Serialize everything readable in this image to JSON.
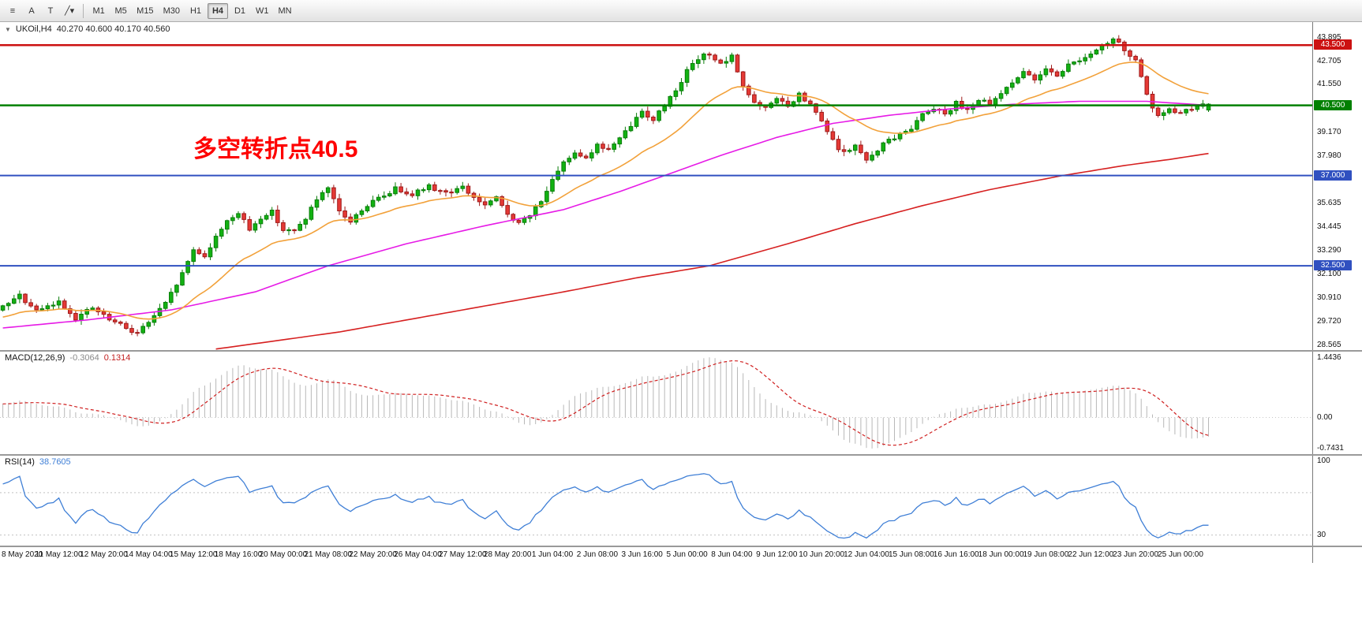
{
  "toolbar": {
    "icons": [
      {
        "name": "chart-list-icon",
        "glyph": "≡"
      },
      {
        "name": "tool-a-button",
        "glyph": "A"
      },
      {
        "name": "tool-t-button",
        "glyph": "T"
      },
      {
        "name": "draw-tool-dropdown",
        "glyph": "╱▾"
      }
    ],
    "timeframes": [
      "M1",
      "M5",
      "M15",
      "M30",
      "H1",
      "H4",
      "D1",
      "W1",
      "MN"
    ],
    "active_timeframe": "H4"
  },
  "header": {
    "dropdown_glyph": "▼",
    "symbol": "UKOil,H4",
    "ohlc": "40.270 40.600 40.170 40.560"
  },
  "annotation": {
    "text": "多空转折点40.5",
    "color": "#fe0000"
  },
  "chart_data": {
    "type": "candlestick",
    "symbol": "UKOil",
    "timeframe": "H4",
    "num_candles": 216,
    "slots": 234,
    "seed": 9,
    "prehistory_candles": 70,
    "price_range": [
      28.3,
      44.65
    ],
    "price_ticks": [
      {
        "v": 43.895,
        "t": "43.895"
      },
      {
        "v": 42.705,
        "t": "42.705"
      },
      {
        "v": 41.55,
        "t": "41.550"
      },
      {
        "v": 39.17,
        "t": "39.170"
      },
      {
        "v": 37.98,
        "t": "37.980"
      },
      {
        "v": 35.635,
        "t": "35.635"
      },
      {
        "v": 34.445,
        "t": "34.445"
      },
      {
        "v": 33.29,
        "t": "33.290"
      },
      {
        "v": 32.1,
        "t": "32.100"
      },
      {
        "v": 30.91,
        "t": "30.910"
      },
      {
        "v": 29.72,
        "t": "29.720"
      },
      {
        "v": 28.565,
        "t": "28.565"
      }
    ],
    "hlines": [
      {
        "value": 43.5,
        "label": "43.500",
        "color": "#cc1111",
        "width": 2.5
      },
      {
        "value": 40.5,
        "label": "40.500",
        "color": "#008000",
        "width": 2.5
      },
      {
        "value": 37.0,
        "label": "37.000",
        "color": "#3050c0",
        "width": 2
      },
      {
        "value": 32.5,
        "label": "32.500",
        "color": "#3050c0",
        "width": 2
      }
    ],
    "x_labels": [
      "8 May 2020",
      "11 May 12:00",
      "12 May 20:00",
      "14 May 04:00",
      "15 May 12:00",
      "18 May 16:00",
      "20 May 00:00",
      "21 May 08:00",
      "22 May 20:00",
      "26 May 04:00",
      "27 May 12:00",
      "28 May 20:00",
      "1 Jun 04:00",
      "2 Jun 08:00",
      "3 Jun 16:00",
      "5 Jun 00:00",
      "8 Jun 04:00",
      "9 Jun 12:00",
      "10 Jun 20:00",
      "12 Jun 04:00",
      "15 Jun 08:00",
      "16 Jun 16:00",
      "18 Jun 00:00",
      "19 Jun 08:00",
      "22 Jun 12:00",
      "23 Jun 20:00",
      "25 Jun 00:00"
    ],
    "candles_per_label": 8,
    "first_label_candle": 2,
    "prehistory_anchors": [
      [
        -70,
        27.2
      ],
      [
        -55,
        27.9
      ],
      [
        -40,
        28.6
      ],
      [
        -25,
        29.2
      ],
      [
        -12,
        29.8
      ]
    ],
    "close_anchors": [
      [
        0,
        30.4
      ],
      [
        3,
        31.0
      ],
      [
        6,
        30.2
      ],
      [
        10,
        30.7
      ],
      [
        13,
        29.9
      ],
      [
        16,
        30.4
      ],
      [
        19,
        29.8
      ],
      [
        22,
        29.4
      ],
      [
        24,
        29.15
      ],
      [
        26,
        29.7
      ],
      [
        29,
        30.6
      ],
      [
        32,
        32.1
      ],
      [
        34,
        33.3
      ],
      [
        36,
        33.0
      ],
      [
        38,
        33.9
      ],
      [
        40,
        34.8
      ],
      [
        42,
        35.1
      ],
      [
        44,
        34.3
      ],
      [
        46,
        34.9
      ],
      [
        48,
        35.2
      ],
      [
        50,
        34.3
      ],
      [
        52,
        34.2
      ],
      [
        54,
        34.9
      ],
      [
        56,
        35.8
      ],
      [
        58,
        36.3
      ],
      [
        60,
        35.2
      ],
      [
        62,
        34.7
      ],
      [
        64,
        35.3
      ],
      [
        66,
        35.7
      ],
      [
        68,
        36.0
      ],
      [
        70,
        36.35
      ],
      [
        73,
        36.1
      ],
      [
        76,
        36.45
      ],
      [
        79,
        36.15
      ],
      [
        82,
        36.4
      ],
      [
        84,
        35.9
      ],
      [
        86,
        35.5
      ],
      [
        88,
        35.85
      ],
      [
        90,
        35.1
      ],
      [
        92,
        34.6
      ],
      [
        94,
        35.0
      ],
      [
        96,
        35.8
      ],
      [
        98,
        36.7
      ],
      [
        100,
        37.6
      ],
      [
        102,
        38.2
      ],
      [
        104,
        37.9
      ],
      [
        106,
        38.5
      ],
      [
        108,
        38.3
      ],
      [
        110,
        38.8
      ],
      [
        112,
        39.5
      ],
      [
        114,
        40.2
      ],
      [
        116,
        39.8
      ],
      [
        118,
        40.5
      ],
      [
        120,
        41.3
      ],
      [
        122,
        42.2
      ],
      [
        124,
        42.8
      ],
      [
        126,
        43.1
      ],
      [
        128,
        42.5
      ],
      [
        130,
        42.9
      ],
      [
        132,
        41.5
      ],
      [
        134,
        40.6
      ],
      [
        136,
        40.3
      ],
      [
        138,
        40.9
      ],
      [
        140,
        40.4
      ],
      [
        142,
        41.0
      ],
      [
        144,
        40.5
      ],
      [
        146,
        39.7
      ],
      [
        148,
        38.7
      ],
      [
        150,
        38.1
      ],
      [
        152,
        38.5
      ],
      [
        154,
        37.7
      ],
      [
        156,
        38.3
      ],
      [
        158,
        38.8
      ],
      [
        160,
        39.0
      ],
      [
        162,
        39.4
      ],
      [
        164,
        40.1
      ],
      [
        166,
        40.4
      ],
      [
        168,
        40.1
      ],
      [
        170,
        40.6
      ],
      [
        172,
        40.3
      ],
      [
        174,
        40.8
      ],
      [
        176,
        40.5
      ],
      [
        178,
        41.1
      ],
      [
        180,
        41.7
      ],
      [
        182,
        42.1
      ],
      [
        184,
        41.8
      ],
      [
        186,
        42.4
      ],
      [
        188,
        42.0
      ],
      [
        190,
        42.5
      ],
      [
        192,
        42.8
      ],
      [
        194,
        43.0
      ],
      [
        196,
        43.4
      ],
      [
        198,
        43.8
      ],
      [
        200,
        43.3
      ],
      [
        202,
        42.7
      ],
      [
        203,
        42.0
      ],
      [
        204,
        41.0
      ],
      [
        205,
        40.3
      ],
      [
        206,
        39.9
      ],
      [
        208,
        40.25
      ],
      [
        210,
        40.15
      ],
      [
        212,
        40.35
      ],
      [
        215,
        40.56
      ]
    ],
    "peak_high": {
      "index": 198,
      "value": 43.895
    },
    "current_candle_ohlc": [
      40.27,
      40.6,
      40.17,
      40.56
    ],
    "ma_fast_period": 21,
    "ma_mid_anchors": [
      [
        0,
        29.4
      ],
      [
        15,
        29.8
      ],
      [
        30,
        30.3
      ],
      [
        45,
        31.2
      ],
      [
        58,
        32.5
      ],
      [
        72,
        33.6
      ],
      [
        86,
        34.5
      ],
      [
        100,
        35.3
      ],
      [
        110,
        36.2
      ],
      [
        118,
        37.0
      ],
      [
        128,
        38.0
      ],
      [
        138,
        38.9
      ],
      [
        148,
        39.6
      ],
      [
        158,
        40.0
      ],
      [
        168,
        40.3
      ],
      [
        180,
        40.55
      ],
      [
        192,
        40.7
      ],
      [
        204,
        40.7
      ],
      [
        215,
        40.5
      ]
    ],
    "ma_slow_anchors": [
      [
        38,
        28.35
      ],
      [
        60,
        29.2
      ],
      [
        80,
        30.2
      ],
      [
        100,
        31.2
      ],
      [
        113,
        31.9
      ],
      [
        126,
        32.5
      ],
      [
        140,
        33.6
      ],
      [
        152,
        34.6
      ],
      [
        164,
        35.5
      ],
      [
        176,
        36.3
      ],
      [
        189,
        37.0
      ],
      [
        200,
        37.5
      ],
      [
        208,
        37.8
      ],
      [
        215,
        38.1
      ]
    ],
    "macd": {
      "label": "MACD(12,26,9)",
      "value_main": "-0.3064",
      "value_signal": "0.1314",
      "fast": 12,
      "slow": 26,
      "signal": 9,
      "max_value": 1.4436,
      "range": [
        -0.88,
        1.58
      ],
      "ticks": [
        {
          "v": 1.4436,
          "t": "1.4436"
        },
        {
          "v": 0,
          "t": "0.00"
        },
        {
          "v": -0.7431,
          "t": "-0.7431"
        }
      ]
    },
    "rsi": {
      "label": "RSI(14)",
      "value": "38.7605",
      "period": 14,
      "range": [
        20,
        105
      ],
      "levels": [
        70,
        30
      ],
      "ticks": [
        {
          "v": 100,
          "t": "100"
        },
        {
          "v": 30,
          "t": "30"
        }
      ]
    },
    "colors": {
      "up": "#12b212",
      "up_stroke": "#0a7d0a",
      "down": "#e53935",
      "down_stroke": "#9e1b1b",
      "hist": "#b8b8b8",
      "signal": "#d02020",
      "rsi_line": "#3f7fd6",
      "rsi_level": "#c0c0c0",
      "ma_fast": "#f2a13a",
      "ma_mid": "#e61ae6",
      "ma_slow": "#d62020",
      "zero_line": "#c8c8c8"
    }
  }
}
